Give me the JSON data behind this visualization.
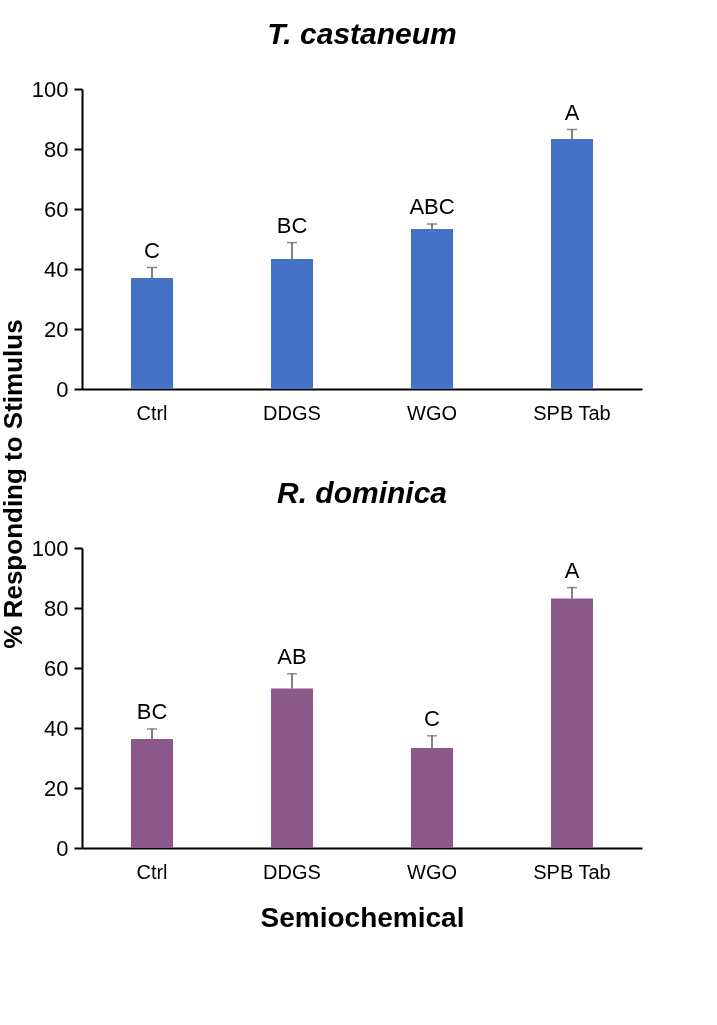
{
  "chart_data": [
    {
      "type": "bar",
      "title": "T. castaneum",
      "ylabel": "% Responding to Stimulus",
      "categories": [
        "Ctrl",
        "DDGS",
        "WGO",
        "SPB Tab"
      ],
      "values": [
        37,
        43.3,
        53.3,
        83.3
      ],
      "color": "#4472c4",
      "errors": [
        [
          37,
          40.5
        ],
        [
          43.3,
          48.8
        ],
        [
          53.3,
          55
        ],
        [
          83.3,
          86.5
        ]
      ],
      "annotations": [
        {
          "text": "C",
          "x": "Ctrl",
          "y": 40.5
        },
        {
          "text": "BC",
          "x": "DDGS",
          "y": 48.8
        },
        {
          "text": "ABC",
          "x": "WGO",
          "y": 55
        },
        {
          "text": "A",
          "x": "SPB Tab",
          "y": 86.5
        }
      ],
      "ylim": [
        0,
        100
      ],
      "yticks": [
        0,
        20,
        40,
        60,
        80,
        100
      ],
      "grid": false
    },
    {
      "type": "bar",
      "title": "R. dominica",
      "xlabel": "Semiochemical",
      "categories": [
        "Ctrl",
        "DDGS",
        "WGO",
        "SPB Tab"
      ],
      "values": [
        36.3,
        53.2,
        33.3,
        83.2
      ],
      "color": "#8b5a8b",
      "errors": [
        [
          36.3,
          39.7
        ],
        [
          53.2,
          58.1
        ],
        [
          33.3,
          37.4
        ],
        [
          83.2,
          86.8
        ]
      ],
      "annotations": [
        {
          "text": "BC",
          "x": "Ctrl",
          "y": 39.7
        },
        {
          "text": "AB",
          "x": "DDGS",
          "y": 58.1
        },
        {
          "text": "C",
          "x": "WGO",
          "y": 37.4
        },
        {
          "text": "A",
          "x": "SPB Tab",
          "y": 86.8
        }
      ],
      "ylim": [
        0,
        100
      ],
      "yticks": [
        0,
        20,
        40,
        60,
        80,
        100
      ],
      "grid": false
    }
  ]
}
